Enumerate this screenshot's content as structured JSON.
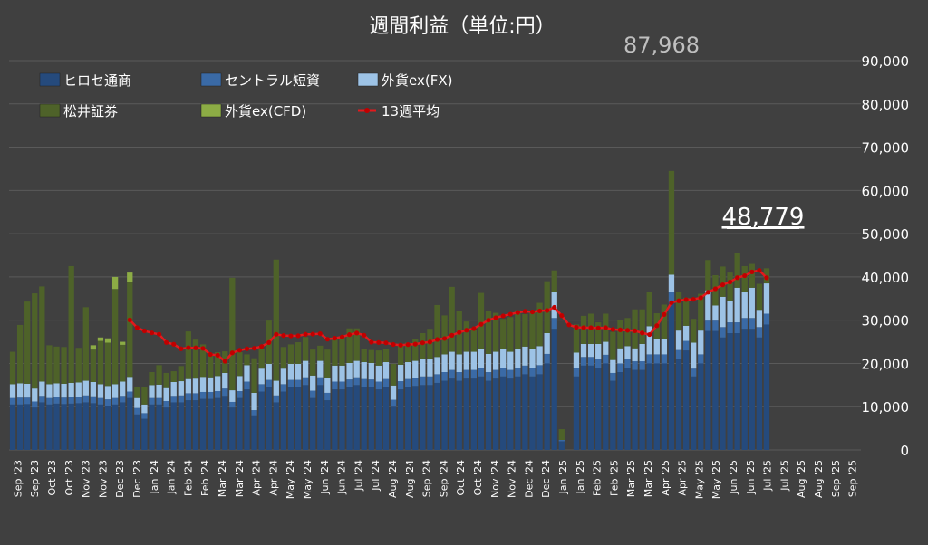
{
  "chart_data": {
    "type": "bar",
    "stacked": true,
    "title": "週間利益（単位:円）",
    "ylim": [
      0,
      90000
    ],
    "yticks": [
      "0",
      "10,000",
      "20,000",
      "30,000",
      "40,000",
      "50,000",
      "60,000",
      "70,000",
      "80,000",
      "90,000"
    ],
    "yaxis_position": "right",
    "legend_position": "top-left",
    "xlabels": [
      "Sep '23",
      "Sep '23",
      "Oct '23",
      "Oct '23",
      "Nov '23",
      "Nov '23",
      "Dec '23",
      "Dec '23",
      "Jan '24",
      "Jan '24",
      "Feb '24",
      "Feb '24",
      "Mar '24",
      "Mar '24",
      "Apr '24",
      "Apr '24",
      "May '24",
      "May '24",
      "Jun '24",
      "Jun '24",
      "Jul '24",
      "Jul '24",
      "Aug '24",
      "Aug '24",
      "Sep '24",
      "Sep '24",
      "Oct '24",
      "Oct '24",
      "Nov '24",
      "Nov '24",
      "Dec '24",
      "Dec '24",
      "Jan '25",
      "Jan '25",
      "Feb '25",
      "Feb '25",
      "Mar '25",
      "Mar '25",
      "Apr '25",
      "Apr '25",
      "May '25",
      "May '25",
      "Jun '25",
      "Jun '25",
      "Jul '25",
      "Jul '25",
      "Aug '25",
      "Aug '25",
      "Sep '25",
      "Sep '25"
    ],
    "series": [
      {
        "name": "ヒロセ通商",
        "color": "#254a7c",
        "values": [
          10500,
          10500,
          10600,
          9800,
          11000,
          10500,
          10700,
          10600,
          10700,
          10800,
          11000,
          10800,
          10500,
          10200,
          10500,
          11000,
          12000,
          8200,
          7200,
          10500,
          10500,
          9800,
          11000,
          11000,
          11500,
          11500,
          11800,
          11800,
          12000,
          12500,
          9800,
          12000,
          14000,
          8000,
          13500,
          14500,
          11000,
          13500,
          14500,
          14500,
          15000,
          12000,
          15000,
          11500,
          14000,
          14000,
          14500,
          15000,
          14500,
          14500,
          14000,
          14500,
          10000,
          14000,
          14500,
          14800,
          15000,
          15000,
          15500,
          16000,
          16500,
          16000,
          16500,
          16500,
          17000,
          16000,
          16500,
          17000,
          16500,
          17000,
          17500,
          17000,
          17500,
          20000,
          28000,
          2000,
          0,
          17000,
          19500,
          19500,
          19000,
          20000,
          16000,
          18000,
          19000,
          18500,
          18500,
          20000,
          20000,
          20000,
          34000,
          21000,
          23000,
          17000,
          20000,
          27500,
          27500,
          26000,
          27000,
          27000,
          28000,
          28000,
          26000,
          29000
        ]
      },
      {
        "name": "セントラル短資",
        "color": "#3a6aa6",
        "values": [
          1500,
          1600,
          1500,
          1400,
          1500,
          1500,
          1500,
          1500,
          1500,
          1500,
          1600,
          1600,
          1500,
          1500,
          1500,
          1500,
          1500,
          1500,
          1300,
          1500,
          1500,
          1500,
          1500,
          1600,
          1600,
          1600,
          1600,
          1600,
          1600,
          1700,
          1300,
          1600,
          1800,
          1200,
          1700,
          1700,
          1600,
          1700,
          1700,
          1700,
          1800,
          1700,
          1800,
          1700,
          1800,
          1800,
          1800,
          1800,
          1900,
          1800,
          1800,
          1900,
          1600,
          1900,
          1900,
          1900,
          2000,
          2000,
          2000,
          2000,
          2000,
          2000,
          2000,
          2000,
          2000,
          2000,
          2000,
          2000,
          2000,
          2000,
          2000,
          2000,
          2100,
          2200,
          2500,
          300,
          0,
          2000,
          2000,
          2000,
          2000,
          2000,
          1800,
          2000,
          2000,
          2000,
          2000,
          2100,
          2100,
          2100,
          2500,
          2100,
          2200,
          1800,
          2100,
          2400,
          2400,
          2400,
          2500,
          2500,
          2500,
          2500,
          2400,
          2500
        ]
      },
      {
        "name": "外貨ex(FX)",
        "color": "#9dc3e6",
        "values": [
          3200,
          3300,
          3200,
          3000,
          3300,
          3200,
          3200,
          3200,
          3300,
          3300,
          3400,
          3300,
          3200,
          3100,
          3200,
          3300,
          3400,
          2300,
          2000,
          3000,
          3100,
          3000,
          3200,
          3300,
          3300,
          3400,
          3500,
          3400,
          3500,
          3600,
          2700,
          3500,
          3800,
          4000,
          3600,
          3700,
          3400,
          3600,
          3700,
          3700,
          3800,
          3500,
          3800,
          3500,
          3700,
          3700,
          3800,
          3800,
          3900,
          3800,
          3700,
          3900,
          3300,
          3800,
          3900,
          3900,
          4000,
          4000,
          4000,
          4100,
          4200,
          4100,
          4200,
          4200,
          4300,
          4200,
          4200,
          4300,
          4200,
          4300,
          4400,
          4300,
          4400,
          4800,
          6000,
          0,
          0,
          3500,
          3000,
          3000,
          3500,
          3000,
          3000,
          3500,
          3000,
          3000,
          4000,
          6500,
          3500,
          3500,
          4000,
          4500,
          3500,
          6000,
          5500,
          7000,
          3500,
          7000,
          5000,
          8000,
          6000,
          7000,
          4000,
          7000
        ]
      },
      {
        "name": "松井証券",
        "color": "#4e6229",
        "values": [
          7500,
          13500,
          19000,
          22000,
          22000,
          9000,
          8500,
          8500,
          27000,
          8000,
          17000,
          7500,
          10000,
          10000,
          22000,
          8500,
          22000,
          2500,
          4000,
          3000,
          4500,
          3500,
          2500,
          3500,
          11000,
          9000,
          7500,
          5000,
          5500,
          5000,
          26000,
          5500,
          2500,
          8000,
          4500,
          10000,
          28000,
          5000,
          4500,
          5000,
          5500,
          6000,
          3500,
          6500,
          6000,
          6500,
          8000,
          7500,
          3000,
          3000,
          3500,
          3000,
          5000,
          4500,
          4500,
          5000,
          6000,
          7000,
          12000,
          9000,
          15000,
          10000,
          7000,
          5000,
          13000,
          10000,
          9000,
          7000,
          8000,
          9000,
          7500,
          8500,
          10000,
          12000,
          5000,
          2500,
          0,
          6500,
          6500,
          7000,
          5000,
          6500,
          6500,
          6500,
          6500,
          9000,
          8000,
          8000,
          6000,
          8000,
          24000,
          9000,
          6500,
          5500,
          8500,
          7000,
          7000,
          7000,
          6500,
          8000,
          6000,
          5500,
          6000,
          3500
        ]
      },
      {
        "name": "外貨ex(CFD)",
        "color": "#8cac45",
        "values": [
          0,
          0,
          0,
          0,
          0,
          0,
          0,
          0,
          0,
          0,
          0,
          0,
          0,
          0,
          0,
          0,
          0,
          0,
          0,
          0,
          0,
          0,
          0,
          0,
          0,
          0,
          0,
          0,
          0,
          0,
          0,
          0,
          0,
          0,
          0,
          0,
          0,
          0,
          0,
          0,
          0,
          0,
          0,
          0,
          0,
          0,
          0,
          0,
          0,
          0,
          0,
          0,
          0,
          0,
          0,
          0,
          0,
          0,
          0,
          0,
          0,
          0,
          0,
          0,
          0,
          0,
          0,
          0,
          0,
          0,
          0,
          0,
          0,
          0,
          0,
          0,
          0,
          0,
          0,
          0,
          0,
          0,
          0,
          0,
          0,
          0,
          0,
          0,
          0,
          0,
          0,
          0,
          0,
          0,
          0,
          0,
          0,
          0,
          0,
          0,
          0,
          0,
          0,
          0
        ]
      },
      {
        "name": "13週平均",
        "color": "#e3191c",
        "values": []
      }
    ],
    "weekly_totals": [
      22600,
      28900,
      34300,
      36200,
      37800,
      24200,
      23900,
      23800,
      42500,
      23600,
      33000,
      24200,
      26000,
      25800,
      40000,
      25000,
      41000,
      14500,
      14500,
      18000,
      19600,
      17800,
      18200,
      19400,
      27400,
      25500,
      24400,
      21800,
      22600,
      22800,
      39800,
      22600,
      22100,
      21200,
      23300,
      29900,
      44000,
      23800,
      24400,
      24900,
      26100,
      23200,
      24100,
      23200,
      25500,
      26000,
      28100,
      28100,
      23300,
      23100,
      23000,
      23300,
      19900,
      24200,
      24800,
      25600,
      27000,
      28000,
      33500,
      31100,
      37700,
      32100,
      29700,
      27700,
      36300,
      32200,
      31700,
      30300,
      30700,
      32300,
      31400,
      31800,
      34000,
      39000,
      41500,
      4800,
      0,
      29000,
      31000,
      31500,
      29500,
      31500,
      27300,
      30000,
      30500,
      32500,
      32500,
      36600,
      31600,
      33600,
      64500,
      36600,
      35200,
      30300,
      36100,
      43900,
      40400,
      42400,
      41000,
      45500,
      42500,
      43000,
      38400,
      42000
    ],
    "annotations": [
      "87,968",
      "48,779"
    ]
  }
}
